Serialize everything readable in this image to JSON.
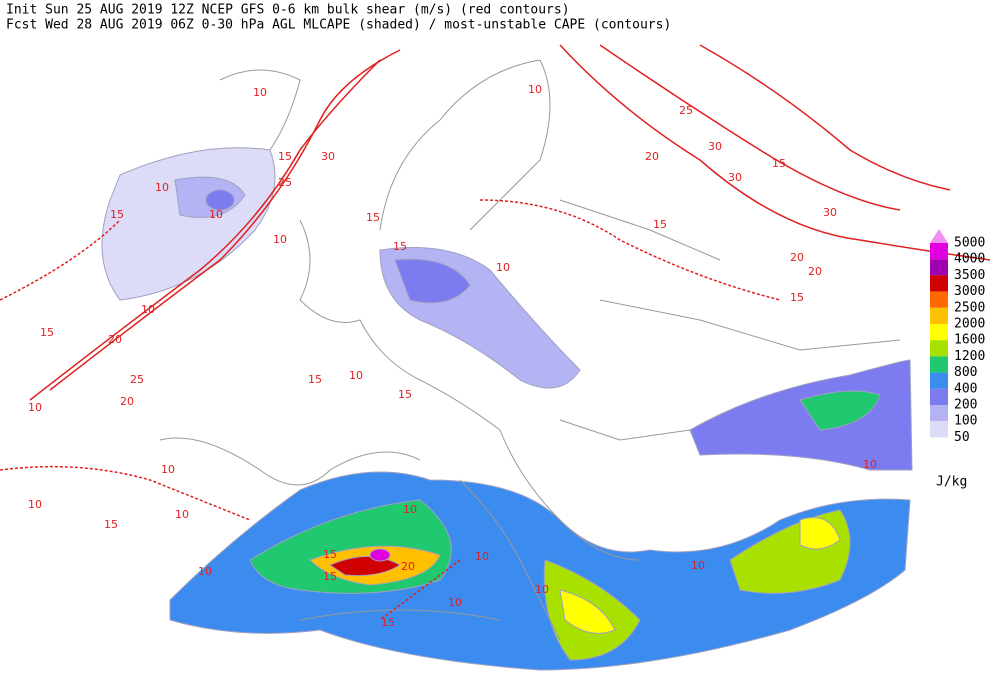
{
  "header": {
    "line1": "Init  Sun 25 AUG 2019 12Z  NCEP GFS 0-6 km bulk shear (m/s) (red contours)",
    "line2": "Fcst Wed 28 AUG 2019 06Z  0-30 hPa AGL MLCAPE (shaded) / most-unstable CAPE (contours)"
  },
  "legend": {
    "levels": [
      {
        "label": "5000",
        "color": "#e000e0"
      },
      {
        "label": "4000",
        "color": "#a000b0"
      },
      {
        "label": "3500",
        "color": "#d00000"
      },
      {
        "label": "3000",
        "color": "#ff6a00"
      },
      {
        "label": "2500",
        "color": "#ffc000"
      },
      {
        "label": "2000",
        "color": "#ffff00"
      },
      {
        "label": "1600",
        "color": "#a8e000"
      },
      {
        "label": "1200",
        "color": "#20c870"
      },
      {
        "label": "800",
        "color": "#3c8cf0"
      },
      {
        "label": "400",
        "color": "#7c7cf0"
      },
      {
        "label": "200",
        "color": "#b4b4f4"
      },
      {
        "label": "100",
        "color": "#dcdcf8"
      },
      {
        "label": "50",
        "color": "#ffffff"
      }
    ],
    "top_color": "#f090f0",
    "unit": "J/kg"
  },
  "contour_labels": [
    "10",
    "15",
    "25",
    "30",
    "15",
    "10",
    "10",
    "25",
    "20",
    "30",
    "30",
    "15",
    "30",
    "20",
    "20",
    "15",
    "15",
    "15",
    "10",
    "10",
    "15",
    "10",
    "20",
    "25",
    "20",
    "15",
    "10",
    "15",
    "10",
    "10",
    "10",
    "15",
    "10",
    "10",
    "10",
    "15",
    "15",
    "20",
    "10",
    "10",
    "10",
    "10",
    "15",
    "10",
    "10",
    "15"
  ]
}
